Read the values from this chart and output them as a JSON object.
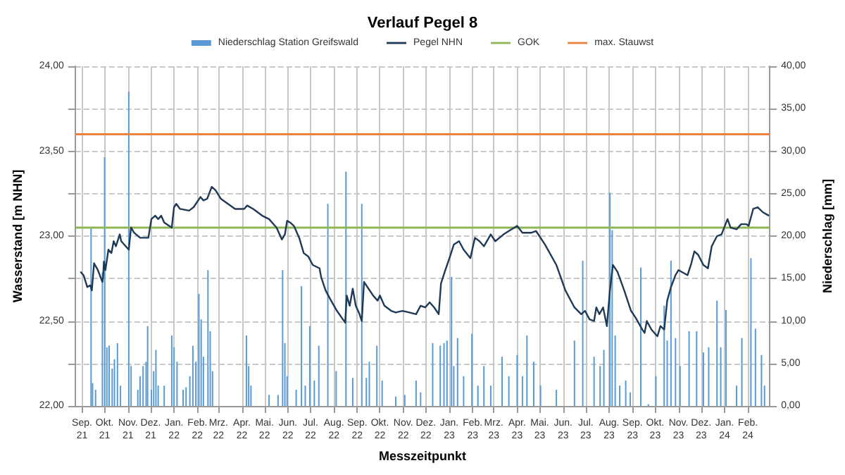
{
  "chart_data": {
    "type": "line",
    "title": "Verlauf Pegel 8",
    "xlabel": "Messzeitpunkt",
    "ylabel": "Wasserstand [m NHN]",
    "y2label": "Niederschlag [mm]",
    "legend": "top",
    "grid": true,
    "marker": "none",
    "line_style": "solid",
    "xlim": [
      "2021-08-23",
      "2024-03-01"
    ],
    "xticks": [
      {
        "value": "2021-09",
        "label": "Sep.\n21"
      },
      {
        "value": "2021-10",
        "label": "Okt.\n21"
      },
      {
        "value": "2021-11",
        "label": "Nov.\n21"
      },
      {
        "value": "2021-12",
        "label": "Dez.\n21"
      },
      {
        "value": "2022-01",
        "label": "Jan.\n22"
      },
      {
        "value": "2022-02",
        "label": "Feb.\n22"
      },
      {
        "value": "2022-03",
        "label": "Mrz.\n22"
      },
      {
        "value": "2022-04",
        "label": "Apr.\n22"
      },
      {
        "value": "2022-05",
        "label": "Mai.\n22"
      },
      {
        "value": "2022-06",
        "label": "Jun.\n22"
      },
      {
        "value": "2022-07",
        "label": "Jul.\n22"
      },
      {
        "value": "2022-08",
        "label": "Aug.\n22"
      },
      {
        "value": "2022-09",
        "label": "Sep.\n22"
      },
      {
        "value": "2022-10",
        "label": "Okt.\n22"
      },
      {
        "value": "2022-11",
        "label": "Nov.\n22"
      },
      {
        "value": "2022-12",
        "label": "Dez.\n22"
      },
      {
        "value": "2023-01",
        "label": "Jan.\n23"
      },
      {
        "value": "2023-02",
        "label": "Feb.\n23"
      },
      {
        "value": "2023-03",
        "label": "Mrz.\n23"
      },
      {
        "value": "2023-04",
        "label": "Apr.\n23"
      },
      {
        "value": "2023-05",
        "label": "Mai.\n23"
      },
      {
        "value": "2023-06",
        "label": "Jun.\n23"
      },
      {
        "value": "2023-07",
        "label": "Jul.\n23"
      },
      {
        "value": "2023-08",
        "label": "Aug.\n23"
      },
      {
        "value": "2023-09",
        "label": "Sep.\n23"
      },
      {
        "value": "2023-10",
        "label": "Okt.\n23"
      },
      {
        "value": "2023-11",
        "label": "Nov.\n23"
      },
      {
        "value": "2023-12",
        "label": "Dez.\n23"
      },
      {
        "value": "2024-01",
        "label": "Jan.\n24"
      },
      {
        "value": "2024-02",
        "label": "Feb.\n24"
      }
    ],
    "ylim": [
      22,
      24
    ],
    "yticks": [
      {
        "value": 22,
        "label": "22,00"
      },
      {
        "value": 22.25,
        "label": null
      },
      {
        "value": 22.5,
        "label": "22,50"
      },
      {
        "value": 22.75,
        "label": null
      },
      {
        "value": 23,
        "label": "23,00"
      },
      {
        "value": 23.25,
        "label": null
      },
      {
        "value": 23.5,
        "label": "23,50"
      },
      {
        "value": 23.75,
        "label": null
      },
      {
        "value": 24,
        "label": "24,00"
      }
    ],
    "y2lim": [
      0,
      40
    ],
    "y2ticks": [
      {
        "value": 0,
        "label": "0,00"
      },
      {
        "value": 5,
        "label": "5,00"
      },
      {
        "value": 10,
        "label": "10,00"
      },
      {
        "value": 15,
        "label": "15,00"
      },
      {
        "value": 20,
        "label": "20,00"
      },
      {
        "value": 25,
        "label": "25,00"
      },
      {
        "value": 30,
        "label": "30,00"
      },
      {
        "value": 35,
        "label": "35,00"
      },
      {
        "value": 40,
        "label": "40,00"
      }
    ],
    "ref_lines": [
      {
        "axis": "y",
        "value": 23.05,
        "label": "GOK",
        "color": "#8fb557"
      },
      {
        "axis": "y",
        "value": 23.6,
        "label": "max. Stauwst",
        "color": "#e8823c"
      }
    ],
    "series": [
      {
        "name": "Niederschlag Station Greifswald",
        "type": "bar",
        "axis": "y2",
        "color": "#5b9bd5",
        "x": [
          "2021-09-13",
          "2021-09-15",
          "2021-09-19",
          "2021-09-28",
          "2021-10-01",
          "2021-10-04",
          "2021-10-07",
          "2021-10-11",
          "2021-10-14",
          "2021-10-18",
          "2021-10-22",
          "2021-11-02",
          "2021-11-05",
          "2021-11-14",
          "2021-11-17",
          "2021-11-21",
          "2021-11-25",
          "2021-11-27",
          "2021-12-02",
          "2021-12-05",
          "2021-12-08",
          "2021-12-11",
          "2021-12-19",
          "2021-12-29",
          "2022-01-01",
          "2022-01-05",
          "2022-01-13",
          "2022-01-17",
          "2022-01-22",
          "2022-01-26",
          "2022-01-30",
          "2022-02-03",
          "2022-02-06",
          "2022-02-09",
          "2022-02-15",
          "2022-02-18",
          "2022-02-21",
          "2022-04-07",
          "2022-04-10",
          "2022-04-13",
          "2022-05-07",
          "2022-05-19",
          "2022-05-25",
          "2022-05-28",
          "2022-05-31",
          "2022-06-12",
          "2022-06-19",
          "2022-06-24",
          "2022-06-30",
          "2022-07-06",
          "2022-07-12",
          "2022-07-24",
          "2022-08-04",
          "2022-08-17",
          "2022-08-26",
          "2022-09-07",
          "2022-09-13",
          "2022-09-17",
          "2022-09-27",
          "2022-10-04",
          "2022-10-22",
          "2022-11-03",
          "2022-11-18",
          "2022-11-24",
          "2022-12-10",
          "2022-12-20",
          "2022-12-25",
          "2022-12-29",
          "2023-01-04",
          "2023-01-07",
          "2023-01-12",
          "2023-01-20",
          "2023-01-31",
          "2023-02-08",
          "2023-02-16",
          "2023-02-25",
          "2023-03-12",
          "2023-03-21",
          "2023-04-01",
          "2023-04-08",
          "2023-04-14",
          "2023-04-23",
          "2023-05-02",
          "2023-05-23",
          "2023-06-16",
          "2023-06-27",
          "2023-07-12",
          "2023-07-20",
          "2023-07-25",
          "2023-08-02",
          "2023-08-05",
          "2023-08-09",
          "2023-08-15",
          "2023-08-23",
          "2023-08-29",
          "2023-09-12",
          "2023-09-22",
          "2023-10-02",
          "2023-10-13",
          "2023-10-17",
          "2023-10-22",
          "2023-10-28",
          "2023-11-03",
          "2023-11-15",
          "2023-11-25",
          "2023-12-04",
          "2023-12-11",
          "2023-12-22",
          "2023-12-27",
          "2024-01-03",
          "2024-01-17",
          "2024-01-24",
          "2024-02-05",
          "2024-02-11",
          "2024-02-19",
          "2024-02-23"
        ],
        "values": [
          21.0,
          2.7,
          1.9,
          15.7,
          29.3,
          6.9,
          7.1,
          4.4,
          5.5,
          7.4,
          2.4,
          37.0,
          4.7,
          1.9,
          3.5,
          4.7,
          5.2,
          9.4,
          1.9,
          4.1,
          6.6,
          2.4,
          2.4,
          8.3,
          6.9,
          5.2,
          1.9,
          2.2,
          3.5,
          7.1,
          5.2,
          13.2,
          10.2,
          5.8,
          16.0,
          8.8,
          4.1,
          8.3,
          4.7,
          2.4,
          1.3,
          1.3,
          16.0,
          7.4,
          3.5,
          1.9,
          14.1,
          2.4,
          9.4,
          3.0,
          7.1,
          23.8,
          4.1,
          27.6,
          3.3,
          23.8,
          3.3,
          5.2,
          7.1,
          3.0,
          1.1,
          1.3,
          3.0,
          1.6,
          7.4,
          7.1,
          7.4,
          7.7,
          15.2,
          4.7,
          8.0,
          3.5,
          8.5,
          2.4,
          4.7,
          2.4,
          5.8,
          3.5,
          6.0,
          3.5,
          8.3,
          5.2,
          2.4,
          1.9,
          7.7,
          17.1,
          5.8,
          4.7,
          6.6,
          25.1,
          20.7,
          8.3,
          2.4,
          3.0,
          1.6,
          16.3,
          0.2,
          3.5,
          11.8,
          7.7,
          17.1,
          8.0,
          4.7,
          8.8,
          8.8,
          6.3,
          6.9,
          12.4,
          6.9,
          11.3,
          2.4,
          8.0,
          17.4,
          9.1,
          6.0,
          2.4
        ]
      },
      {
        "name": "Pegel NHN",
        "color": "#1f3a56",
        "x": [
          "2021-08-30",
          "2021-09-03",
          "2021-09-08",
          "2021-09-12",
          "2021-09-14",
          "2021-09-17",
          "2021-09-22",
          "2021-09-28",
          "2021-09-29",
          "2021-09-30",
          "2021-10-02",
          "2021-10-06",
          "2021-10-10",
          "2021-10-13",
          "2021-10-16",
          "2021-10-21",
          "2021-10-23",
          "2021-10-29",
          "2021-11-02",
          "2021-11-05",
          "2021-11-09",
          "2021-11-17",
          "2021-11-28",
          "2021-12-02",
          "2021-12-07",
          "2021-12-11",
          "2021-12-15",
          "2021-12-19",
          "2021-12-29",
          "2022-01-01",
          "2022-01-04",
          "2022-01-09",
          "2022-01-21",
          "2022-01-27",
          "2022-02-05",
          "2022-02-09",
          "2022-02-14",
          "2022-02-20",
          "2022-02-25",
          "2022-03-04",
          "2022-03-23",
          "2022-04-04",
          "2022-04-08",
          "2022-04-16",
          "2022-04-28",
          "2022-05-07",
          "2022-05-17",
          "2022-05-24",
          "2022-05-28",
          "2022-05-31",
          "2022-06-04",
          "2022-06-09",
          "2022-06-16",
          "2022-06-22",
          "2022-06-28",
          "2022-07-04",
          "2022-07-13",
          "2022-07-15",
          "2022-07-21",
          "2022-07-27",
          "2022-08-05",
          "2022-08-16",
          "2022-08-18",
          "2022-08-22",
          "2022-08-26",
          "2022-08-30",
          "2022-09-04",
          "2022-09-07",
          "2022-09-10",
          "2022-09-16",
          "2022-09-22",
          "2022-09-28",
          "2022-10-01",
          "2022-10-07",
          "2022-10-16",
          "2022-10-22",
          "2022-10-31",
          "2022-11-09",
          "2022-11-18",
          "2022-11-24",
          "2022-11-30",
          "2022-12-06",
          "2022-12-12",
          "2022-12-18",
          "2022-12-21",
          "2022-12-26",
          "2023-01-02",
          "2023-01-07",
          "2023-01-14",
          "2023-01-20",
          "2023-01-29",
          "2023-02-04",
          "2023-02-10",
          "2023-02-16",
          "2023-02-25",
          "2023-03-03",
          "2023-03-14",
          "2023-03-21",
          "2023-04-01",
          "2023-04-08",
          "2023-04-20",
          "2023-04-26",
          "2023-05-08",
          "2023-05-23",
          "2023-06-04",
          "2023-06-16",
          "2023-06-25",
          "2023-06-30",
          "2023-07-06",
          "2023-07-12",
          "2023-07-15",
          "2023-07-19",
          "2023-07-24",
          "2023-07-29",
          "2023-08-02",
          "2023-08-06",
          "2023-08-12",
          "2023-08-21",
          "2023-08-30",
          "2023-09-05",
          "2023-09-14",
          "2023-09-17",
          "2023-09-20",
          "2023-09-26",
          "2023-10-04",
          "2023-10-08",
          "2023-10-13",
          "2023-10-17",
          "2023-10-22",
          "2023-10-28",
          "2023-11-01",
          "2023-11-13",
          "2023-11-18",
          "2023-11-22",
          "2023-11-27",
          "2023-12-04",
          "2023-12-10",
          "2023-12-15",
          "2023-12-22",
          "2023-12-28",
          "2024-01-05",
          "2024-01-09",
          "2024-01-17",
          "2024-01-23",
          "2024-01-30",
          "2024-02-02",
          "2024-02-08",
          "2024-02-14",
          "2024-02-21",
          "2024-02-29"
        ],
        "values": [
          22.79,
          22.77,
          22.7,
          22.71,
          22.68,
          22.84,
          22.8,
          22.73,
          22.76,
          22.85,
          22.8,
          22.92,
          22.9,
          22.97,
          22.94,
          23.01,
          22.97,
          22.94,
          22.92,
          23.05,
          23.02,
          22.99,
          22.99,
          23.1,
          23.12,
          23.1,
          23.12,
          23.08,
          23.05,
          23.17,
          23.19,
          23.16,
          23.15,
          23.17,
          23.23,
          23.21,
          23.22,
          23.29,
          23.27,
          23.22,
          23.16,
          23.16,
          23.18,
          23.16,
          23.12,
          23.1,
          23.05,
          22.98,
          23.01,
          23.09,
          23.08,
          23.06,
          22.99,
          22.9,
          22.88,
          22.83,
          22.81,
          22.76,
          22.68,
          22.63,
          22.56,
          22.49,
          22.65,
          22.59,
          22.69,
          22.59,
          22.54,
          22.5,
          22.73,
          22.69,
          22.65,
          22.62,
          22.65,
          22.59,
          22.56,
          22.55,
          22.56,
          22.55,
          22.54,
          22.59,
          22.58,
          22.61,
          22.58,
          22.54,
          22.72,
          22.79,
          22.88,
          22.95,
          22.97,
          22.92,
          22.87,
          22.99,
          22.97,
          22.94,
          23.01,
          22.97,
          23.01,
          23.03,
          23.06,
          23.02,
          23.02,
          23.03,
          22.95,
          22.83,
          22.68,
          22.58,
          22.54,
          22.56,
          22.51,
          22.5,
          22.58,
          22.54,
          22.58,
          22.47,
          22.68,
          22.83,
          22.79,
          22.68,
          22.56,
          22.52,
          22.45,
          22.43,
          22.5,
          22.45,
          22.41,
          22.47,
          22.45,
          22.62,
          22.7,
          22.77,
          22.8,
          22.77,
          22.84,
          22.91,
          22.89,
          22.83,
          22.81,
          22.94,
          23.0,
          23.01,
          23.1,
          23.05,
          23.04,
          23.07,
          23.07,
          23.06,
          23.16,
          23.17,
          23.14,
          23.12
        ]
      }
    ]
  }
}
